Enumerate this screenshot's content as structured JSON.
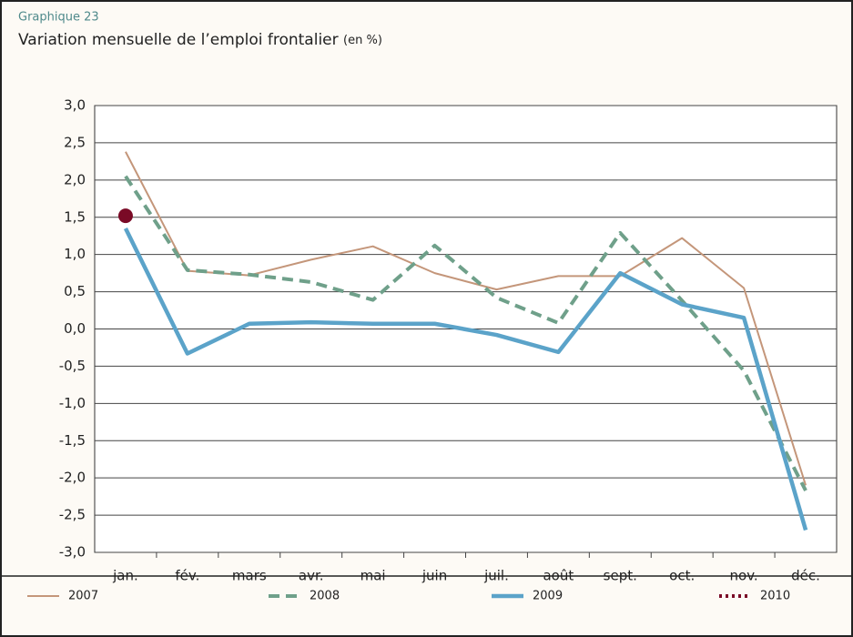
{
  "chart_data": {
    "type": "line",
    "label": "Graphique 23",
    "title": "Variation mensuelle de l’emploi frontalier",
    "subtitle": "(en %)",
    "categories": [
      "jan.",
      "fév.",
      "mars",
      "avr.",
      "mai",
      "juin",
      "juil.",
      "août",
      "sept.",
      "oct.",
      "nov.",
      "déc."
    ],
    "series": [
      {
        "name": "2007",
        "color": "#c4967a",
        "style": "solid",
        "values": [
          2.38,
          0.78,
          0.72,
          0.93,
          1.11,
          0.75,
          0.53,
          0.71,
          0.71,
          1.22,
          0.55,
          -2.1
        ]
      },
      {
        "name": "2008",
        "color": "#6fa08a",
        "style": "dashed",
        "values": [
          2.05,
          0.79,
          0.73,
          0.63,
          0.39,
          1.12,
          0.42,
          0.08,
          1.29,
          0.38,
          -0.56,
          -2.17
        ]
      },
      {
        "name": "2009",
        "color": "#5ba3c9",
        "style": "thick",
        "values": [
          1.35,
          -0.33,
          0.07,
          0.09,
          0.07,
          0.07,
          -0.08,
          -0.31,
          0.75,
          0.33,
          0.15,
          -2.7
        ]
      },
      {
        "name": "2010",
        "color": "#7a0a26",
        "style": "dotted",
        "values": [
          1.52,
          null,
          null,
          null,
          null,
          null,
          null,
          null,
          null,
          null,
          null,
          null
        ]
      }
    ],
    "ylim": [
      -3,
      3
    ],
    "yticks": [
      {
        "value": 3,
        "label": "3,0"
      },
      {
        "value": 2.5,
        "label": "2,5"
      },
      {
        "value": 2,
        "label": "2,0"
      },
      {
        "value": 1.5,
        "label": "1,5"
      },
      {
        "value": 1,
        "label": "1,0"
      },
      {
        "value": 0.5,
        "label": "0,5"
      },
      {
        "value": 0,
        "label": "0,0"
      },
      {
        "value": -0.5,
        "label": "-0,5"
      },
      {
        "value": -1,
        "label": "-1,0"
      },
      {
        "value": -1.5,
        "label": "-1,5"
      },
      {
        "value": -2,
        "label": "-2,0"
      },
      {
        "value": -2.5,
        "label": "-2,5"
      },
      {
        "value": -3,
        "label": "-3,0"
      }
    ],
    "grid": true,
    "legend": "bottom"
  }
}
